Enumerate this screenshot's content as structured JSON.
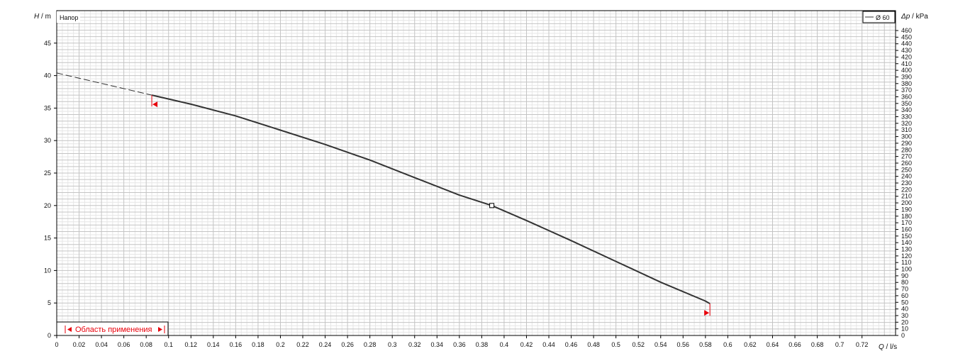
{
  "chart_data": {
    "type": "line",
    "title": "Напор",
    "ylabel_left_var": "H",
    "ylabel_left_unit": "m",
    "ylabel_right_var": "Δp",
    "ylabel_right_unit": "kPa",
    "xlabel_var": "Q",
    "xlabel_unit": "l/s",
    "xlim": [
      0,
      0.75
    ],
    "ylim_left": [
      0,
      50
    ],
    "ylim_right": [
      0,
      490
    ],
    "x_ticks": [
      0,
      0.02,
      0.04,
      0.06,
      0.08,
      0.1,
      0.12,
      0.14,
      0.16,
      0.18,
      0.2,
      0.22,
      0.24,
      0.26,
      0.28,
      0.3,
      0.32,
      0.34,
      0.36,
      0.38,
      0.4,
      0.42,
      0.44,
      0.46,
      0.48,
      0.5,
      0.52,
      0.54,
      0.56,
      0.58,
      0.6,
      0.62,
      0.64,
      0.66,
      0.68,
      0.7,
      0.72
    ],
    "y_left_ticks": [
      0,
      5,
      10,
      15,
      20,
      25,
      30,
      35,
      40,
      45
    ],
    "y_right_ticks": [
      0,
      10,
      20,
      30,
      40,
      50,
      60,
      70,
      80,
      90,
      100,
      110,
      120,
      130,
      140,
      150,
      160,
      170,
      180,
      190,
      200,
      210,
      220,
      230,
      240,
      250,
      260,
      270,
      280,
      290,
      300,
      310,
      320,
      330,
      340,
      350,
      360,
      370,
      380,
      390,
      400,
      410,
      420,
      430,
      440,
      450,
      460
    ],
    "grid": true,
    "legend_position": "top-right",
    "series": [
      {
        "name": "Ø 60",
        "color": "#333333",
        "dashed_segment": {
          "x": [
            0,
            0.085
          ],
          "y": [
            40.4,
            37.0
          ]
        },
        "x": [
          0.085,
          0.12,
          0.16,
          0.2,
          0.24,
          0.28,
          0.32,
          0.36,
          0.389,
          0.42,
          0.46,
          0.5,
          0.54,
          0.58,
          0.584
        ],
        "y": [
          37.0,
          35.6,
          33.8,
          31.6,
          29.4,
          27.0,
          24.3,
          21.6,
          20.0,
          17.7,
          14.6,
          11.4,
          8.2,
          5.3,
          4.9
        ]
      }
    ],
    "operating_point": {
      "x": 0.389,
      "y": 20.0
    },
    "application_range": {
      "label": "Область применения",
      "min_x": 0.085,
      "max_x": 0.584
    },
    "marker_color": "#e8000b"
  }
}
